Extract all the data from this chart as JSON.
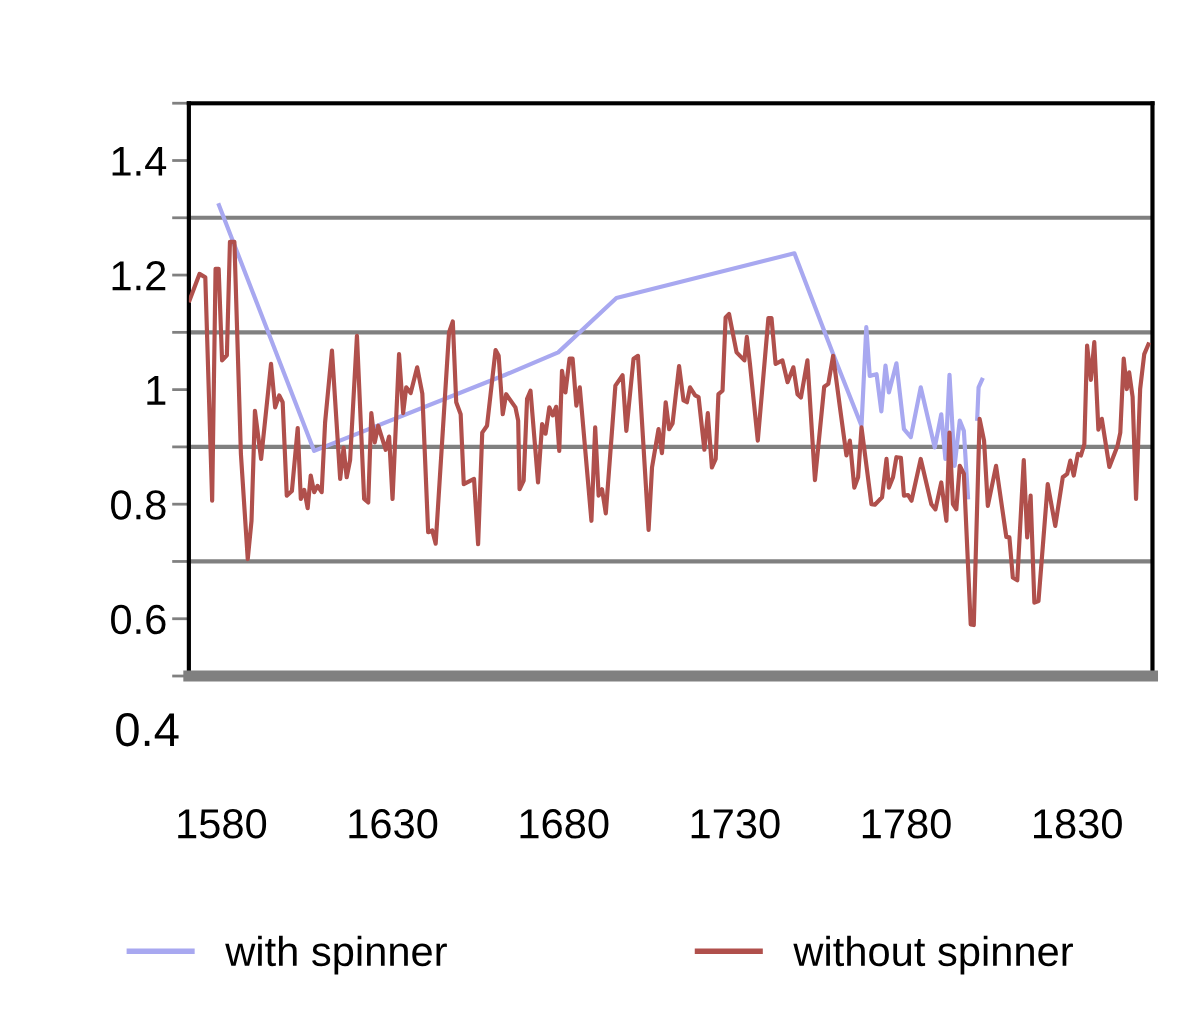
{
  "chart_data": {
    "type": "line",
    "xlim": [
      1570.5,
      1852
    ],
    "xticks": [
      1580,
      1630,
      1680,
      1730,
      1780,
      1830
    ],
    "ylim": [
      0.5,
      1.5
    ],
    "yticks": [
      {
        "value": 0.5,
        "label": null
      },
      0.6,
      {
        "value": 0.7,
        "label": null
      },
      0.8,
      {
        "value": 0.9,
        "label": null
      },
      1,
      {
        "value": 1.1,
        "label": null
      },
      1.2,
      {
        "value": 1.3,
        "label": null
      },
      1.4,
      {
        "value": 1.5,
        "label": null
      }
    ],
    "grid": "y",
    "legend": "bottom",
    "marker": "none",
    "line_style": "solid",
    "annotations": [
      "0.4"
    ],
    "series": [
      {
        "name": "with spinner",
        "color": "#a8a8f0",
        "x": [
          1579.3,
          1607.1,
          1663.0,
          1678.4,
          1695.4,
          1747.4,
          1758.7,
          1767.0,
          1768.4,
          1769.4,
          1771.4,
          1772.8,
          1774.0,
          1775.0,
          1777.2,
          1779.4,
          1781.4,
          1784.3,
          1788.4,
          1790.3,
          1791.5,
          1792.7,
          1794.2,
          1795.7,
          1796.9,
          1798.1,
          1799.5,
          1800.8,
          1801.2,
          1802.2
        ],
        "values": [
          1.322,
          0.893,
          1.026,
          1.065,
          1.16,
          1.238,
          1.062,
          0.937,
          1.109,
          1.024,
          1.027,
          0.962,
          1.042,
          0.995,
          1.046,
          0.931,
          0.917,
          1.004,
          0.899,
          0.957,
          0.879,
          1.026,
          0.867,
          0.946,
          0.928,
          0.812,
          null,
          0.949,
          1.004,
          1.017
        ]
      },
      {
        "name": "without spinner",
        "color": "#b0504c",
        "x": [
          1570.7,
          1573.6,
          1575.3,
          1577.3,
          1578.3,
          1579.2,
          1580.2,
          1581.6,
          1582.5,
          1583.8,
          1585.7,
          1587.7,
          1588.8,
          1589.8,
          1591.6,
          1594.5,
          1595.7,
          1596.9,
          1597.9,
          1599.1,
          1600.6,
          1602.3,
          1603.2,
          1604.2,
          1605.2,
          1606.1,
          1607.1,
          1608.1,
          1609.3,
          1610.3,
          1612.3,
          1614.7,
          1615.7,
          1616.6,
          1617.6,
          1619.6,
          1621.7,
          1622.9,
          1623.8,
          1624.8,
          1625.8,
          1628.0,
          1629.0,
          1630.0,
          1631.9,
          1633.1,
          1634.0,
          1635.3,
          1637.2,
          1638.7,
          1640.4,
          1641.6,
          1642.6,
          1646.5,
          1647.6,
          1648.6,
          1649.9,
          1650.8,
          1653.8,
          1655.0,
          1656.2,
          1657.6,
          1660.1,
          1661.0,
          1662.2,
          1663.2,
          1665.9,
          1666.7,
          1667.1,
          1668.3,
          1669.3,
          1670.3,
          1672.5,
          1673.7,
          1674.7,
          1675.8,
          1676.8,
          1677.8,
          1678.7,
          1679.5,
          1680.5,
          1681.7,
          1682.6,
          1683.7,
          1684.7,
          1688.1,
          1689.2,
          1690.2,
          1691.2,
          1692.3,
          1695.1,
          1697.2,
          1698.3,
          1700.4,
          1701.7,
          1704.8,
          1705.8,
          1707.7,
          1708.7,
          1709.8,
          1710.8,
          1711.8,
          1713.7,
          1715.0,
          1716.0,
          1716.9,
          1718.4,
          1719.4,
          1721.1,
          1722.1,
          1723.3,
          1724.4,
          1725.2,
          1726.4,
          1727.3,
          1728.3,
          1730.5,
          1732.8,
          1733.5,
          1734.4,
          1736.7,
          1739.8,
          1740.7,
          1741.9,
          1743.9,
          1745.4,
          1747.1,
          1748.3,
          1749.3,
          1751.2,
          1753.4,
          1756.1,
          1757.3,
          1758.7,
          1760.7,
          1762.6,
          1763.6,
          1764.9,
          1766.0,
          1767.0,
          1769.9,
          1770.9,
          1773.0,
          1774.3,
          1775.0,
          1776.2,
          1777.2,
          1778.5,
          1779.4,
          1780.6,
          1781.6,
          1784.3,
          1787.4,
          1788.6,
          1790.3,
          1791.8,
          1792.7,
          1793.7,
          1794.7,
          1795.7,
          1796.9,
          1798.9,
          1799.8,
          1801.5,
          1802.8,
          1803.9,
          1806.3,
          1809.3,
          1810.2,
          1811.2,
          1812.5,
          1814.4,
          1815.4,
          1816.4,
          1817.5,
          1818.7,
          1821.4,
          1823.6,
          1825.8,
          1827.1,
          1828.0,
          1829.0,
          1830.2,
          1831.1,
          1832.1,
          1832.9,
          1834.0,
          1835.0,
          1836.2,
          1837.2,
          1839.4,
          1841.8,
          1842.6,
          1843.6,
          1844.5,
          1845.2,
          1846.2,
          1847.2,
          1848.4,
          1849.6,
          1850.8
        ],
        "values": [
          1.156,
          1.202,
          1.196,
          0.806,
          1.211,
          1.211,
          1.051,
          1.06,
          1.258,
          1.258,
          0.888,
          0.704,
          0.771,
          0.963,
          0.879,
          1.045,
          0.969,
          0.99,
          0.978,
          0.815,
          0.823,
          0.933,
          0.809,
          0.825,
          0.793,
          0.85,
          0.821,
          0.832,
          0.821,
          0.943,
          1.068,
          0.844,
          0.899,
          0.847,
          0.877,
          1.094,
          0.809,
          0.803,
          0.959,
          0.908,
          0.937,
          0.895,
          0.918,
          0.809,
          1.062,
          0.959,
          1.004,
          0.994,
          1.039,
          0.993,
          0.751,
          0.754,
          0.731,
          1.1,
          1.119,
          0.978,
          0.957,
          0.835,
          0.844,
          0.73,
          0.925,
          0.937,
          1.069,
          1.059,
          0.957,
          0.992,
          0.969,
          0.946,
          0.826,
          0.841,
          0.984,
          0.998,
          0.838,
          0.94,
          0.923,
          0.969,
          0.955,
          0.97,
          0.893,
          1.033,
          0.995,
          1.054,
          1.054,
          0.972,
          1.004,
          0.771,
          0.934,
          0.815,
          0.826,
          0.784,
          1.007,
          1.025,
          0.928,
          1.054,
          1.059,
          0.755,
          0.864,
          0.931,
          0.889,
          0.978,
          0.931,
          0.941,
          1.041,
          0.981,
          0.978,
          1.004,
          0.99,
          0.987,
          0.895,
          0.959,
          0.864,
          0.879,
          0.992,
          0.998,
          1.126,
          1.132,
          1.065,
          1.051,
          1.092,
          1.045,
          0.911,
          1.125,
          1.125,
          1.045,
          1.051,
          1.013,
          1.039,
          0.992,
          0.986,
          1.051,
          0.842,
          1.005,
          1.01,
          1.059,
          0.969,
          0.885,
          0.911,
          0.829,
          0.847,
          0.934,
          0.8,
          0.799,
          0.812,
          0.879,
          0.829,
          0.847,
          0.882,
          0.881,
          0.815,
          0.816,
          0.806,
          0.879,
          0.8,
          0.791,
          0.838,
          0.771,
          0.925,
          0.8,
          0.791,
          0.867,
          0.853,
          0.59,
          0.589,
          0.949,
          0.911,
          0.797,
          0.867,
          0.743,
          0.742,
          0.672,
          0.667,
          0.877,
          0.742,
          0.815,
          0.628,
          0.631,
          0.835,
          0.762,
          0.847,
          0.853,
          0.876,
          0.85,
          0.888,
          0.885,
          0.905,
          1.077,
          1.017,
          1.083,
          0.93,
          0.949,
          0.865,
          0.902,
          0.925,
          1.054,
          1.001,
          1.03,
          0.987,
          0.809,
          1.001,
          1.062,
          1.079
        ]
      }
    ]
  }
}
